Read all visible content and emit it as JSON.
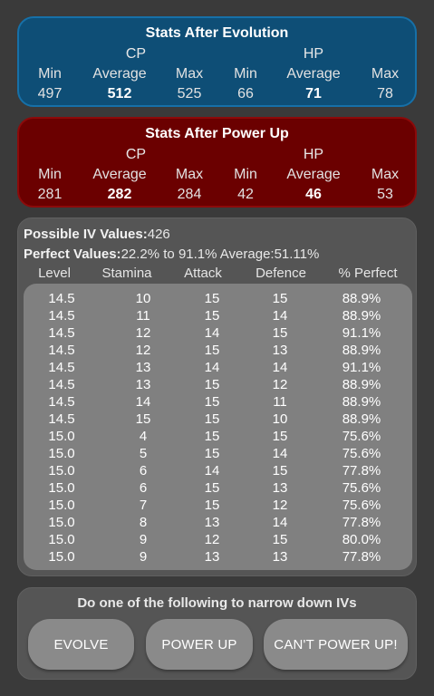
{
  "evolution": {
    "title": "Stats After Evolution",
    "cp_label": "CP",
    "hp_label": "HP",
    "cp": {
      "min_label": "Min",
      "avg_label": "Average",
      "max_label": "Max",
      "min": "497",
      "avg": "512",
      "max": "525"
    },
    "hp": {
      "min_label": "Min",
      "avg_label": "Average",
      "max_label": "Max",
      "min": "66",
      "avg": "71",
      "max": "78"
    },
    "color": "#0e4e76"
  },
  "power_up": {
    "title": "Stats After Power Up",
    "cp_label": "CP",
    "hp_label": "HP",
    "cp": {
      "min_label": "Min",
      "avg_label": "Average",
      "max_label": "Max",
      "min": "281",
      "avg": "282",
      "max": "284"
    },
    "hp": {
      "min_label": "Min",
      "avg_label": "Average",
      "max_label": "Max",
      "min": "42",
      "avg": "46",
      "max": "53"
    },
    "color": "#6b0000"
  },
  "iv": {
    "possible_label": "Possible IV Values:",
    "possible_count": "426",
    "perfect_label": "Perfect Values:",
    "perfect_range": "22.2% to 91.1% Average:51.11%",
    "columns": [
      "Level",
      "Stamina",
      "Attack",
      "Defence",
      "% Perfect"
    ],
    "rows": [
      [
        "14.5",
        "10",
        "15",
        "15",
        "88.9%"
      ],
      [
        "14.5",
        "11",
        "15",
        "14",
        "88.9%"
      ],
      [
        "14.5",
        "12",
        "14",
        "15",
        "91.1%"
      ],
      [
        "14.5",
        "12",
        "15",
        "13",
        "88.9%"
      ],
      [
        "14.5",
        "13",
        "14",
        "14",
        "91.1%"
      ],
      [
        "14.5",
        "13",
        "15",
        "12",
        "88.9%"
      ],
      [
        "14.5",
        "14",
        "15",
        "11",
        "88.9%"
      ],
      [
        "14.5",
        "15",
        "15",
        "10",
        "88.9%"
      ],
      [
        "15.0",
        "4",
        "15",
        "15",
        "75.6%"
      ],
      [
        "15.0",
        "5",
        "15",
        "14",
        "75.6%"
      ],
      [
        "15.0",
        "6",
        "14",
        "15",
        "77.8%"
      ],
      [
        "15.0",
        "6",
        "15",
        "13",
        "75.6%"
      ],
      [
        "15.0",
        "7",
        "15",
        "12",
        "75.6%"
      ],
      [
        "15.0",
        "8",
        "13",
        "14",
        "77.8%"
      ],
      [
        "15.0",
        "9",
        "12",
        "15",
        "80.0%"
      ],
      [
        "15.0",
        "9",
        "13",
        "13",
        "77.8%"
      ]
    ]
  },
  "actions": {
    "prompt": "Do one of the following to narrow down IVs",
    "evolve_label": "EVOLVE",
    "power_up_label": "POWER UP",
    "cant_power_up_label": "CAN'T POWER UP!"
  }
}
